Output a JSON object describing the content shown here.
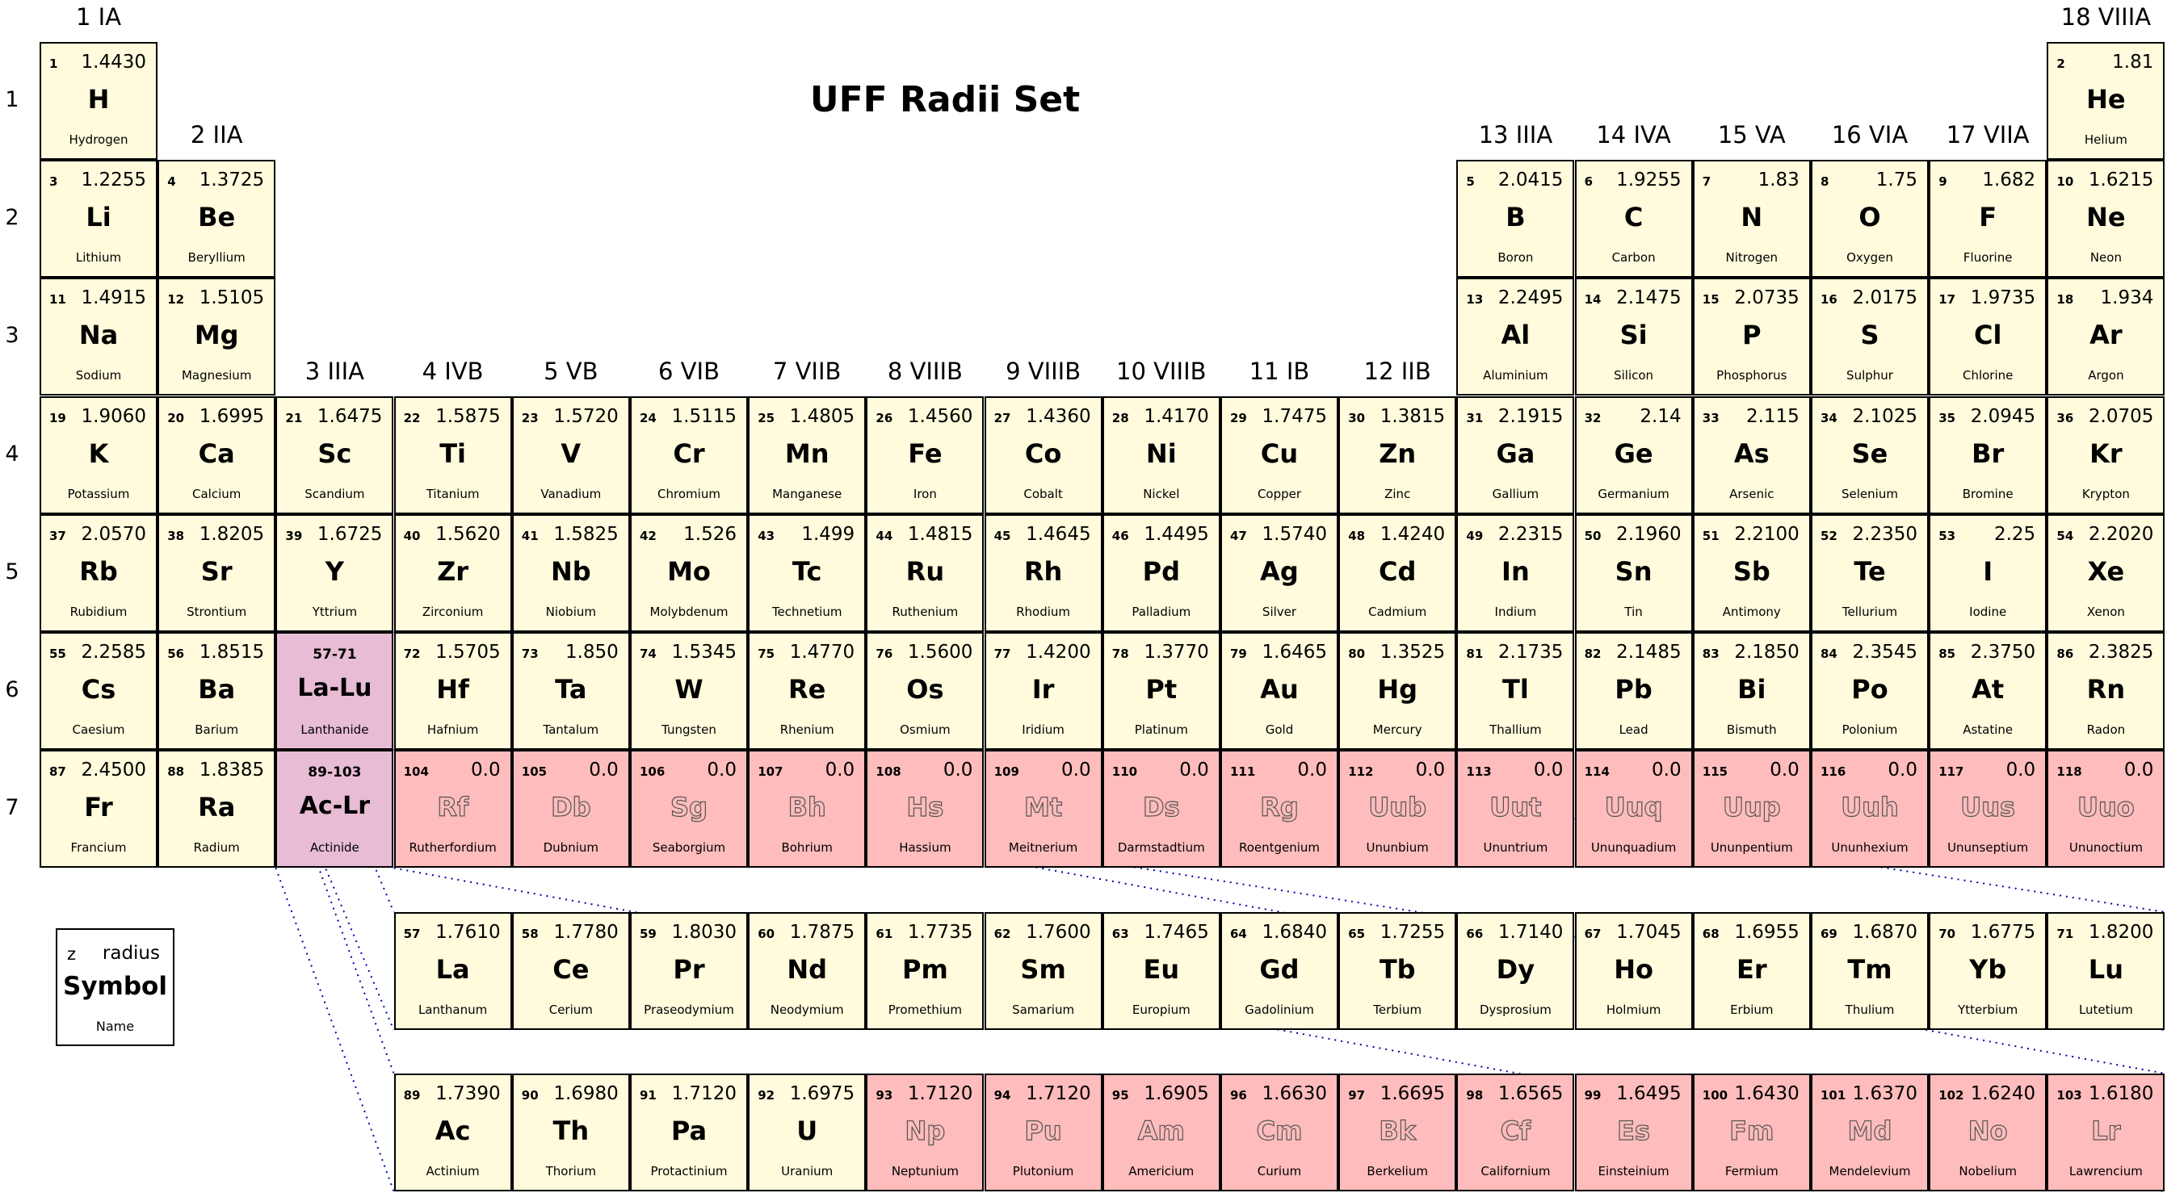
{
  "title": "UFF Radii Set",
  "legend": {
    "z": "z",
    "radius": "radius",
    "symbol": "Symbol",
    "name": "Name"
  },
  "colors": {
    "cell": "#fffbdc",
    "synthetic": "#ffbcbc",
    "series_placeholder": "#e8bcd4",
    "connector": "#0000aa"
  },
  "period_labels": [
    "1",
    "2",
    "3",
    "4",
    "5",
    "6",
    "7"
  ],
  "group_labels": [
    {
      "group": 1,
      "label": "1 IA"
    },
    {
      "group": 2,
      "label": "2 IIA"
    },
    {
      "group": 3,
      "label": "3 IIIA"
    },
    {
      "group": 4,
      "label": "4 IVB"
    },
    {
      "group": 5,
      "label": "5 VB"
    },
    {
      "group": 6,
      "label": "6 VIB"
    },
    {
      "group": 7,
      "label": "7 VIIB"
    },
    {
      "group": 8,
      "label": "8 VIIIB"
    },
    {
      "group": 9,
      "label": "9 VIIIB"
    },
    {
      "group": 10,
      "label": "10 VIIIB"
    },
    {
      "group": 11,
      "label": "11 IB"
    },
    {
      "group": 12,
      "label": "12 IIB"
    },
    {
      "group": 13,
      "label": "13 IIIA"
    },
    {
      "group": 14,
      "label": "14 IVA"
    },
    {
      "group": 15,
      "label": "15 VA"
    },
    {
      "group": 16,
      "label": "16 VIA"
    },
    {
      "group": 17,
      "label": "17 VIIA"
    },
    {
      "group": 18,
      "label": "18 VIIIA"
    }
  ],
  "series_placeholders": [
    {
      "range": "57-71",
      "symbol": "La-Lu",
      "name": "Lanthanide",
      "period": 6,
      "group": 3
    },
    {
      "range": "89-103",
      "symbol": "Ac-Lr",
      "name": "Actinide",
      "period": 7,
      "group": 3
    }
  ],
  "elements": [
    {
      "z": "1",
      "symbol": "H",
      "name": "Hydrogen",
      "radius": "1.4430",
      "period": 1,
      "group": 1
    },
    {
      "z": "2",
      "symbol": "He",
      "name": "Helium",
      "radius": "1.81",
      "period": 1,
      "group": 18
    },
    {
      "z": "3",
      "symbol": "Li",
      "name": "Lithium",
      "radius": "1.2255",
      "period": 2,
      "group": 1
    },
    {
      "z": "4",
      "symbol": "Be",
      "name": "Beryllium",
      "radius": "1.3725",
      "period": 2,
      "group": 2
    },
    {
      "z": "5",
      "symbol": "B",
      "name": "Boron",
      "radius": "2.0415",
      "period": 2,
      "group": 13
    },
    {
      "z": "6",
      "symbol": "C",
      "name": "Carbon",
      "radius": "1.9255",
      "period": 2,
      "group": 14
    },
    {
      "z": "7",
      "symbol": "N",
      "name": "Nitrogen",
      "radius": "1.83",
      "period": 2,
      "group": 15
    },
    {
      "z": "8",
      "symbol": "O",
      "name": "Oxygen",
      "radius": "1.75",
      "period": 2,
      "group": 16
    },
    {
      "z": "9",
      "symbol": "F",
      "name": "Fluorine",
      "radius": "1.682",
      "period": 2,
      "group": 17
    },
    {
      "z": "10",
      "symbol": "Ne",
      "name": "Neon",
      "radius": "1.6215",
      "period": 2,
      "group": 18
    },
    {
      "z": "11",
      "symbol": "Na",
      "name": "Sodium",
      "radius": "1.4915",
      "period": 3,
      "group": 1
    },
    {
      "z": "12",
      "symbol": "Mg",
      "name": "Magnesium",
      "radius": "1.5105",
      "period": 3,
      "group": 2
    },
    {
      "z": "13",
      "symbol": "Al",
      "name": "Aluminium",
      "radius": "2.2495",
      "period": 3,
      "group": 13
    },
    {
      "z": "14",
      "symbol": "Si",
      "name": "Silicon",
      "radius": "2.1475",
      "period": 3,
      "group": 14
    },
    {
      "z": "15",
      "symbol": "P",
      "name": "Phosphorus",
      "radius": "2.0735",
      "period": 3,
      "group": 15
    },
    {
      "z": "16",
      "symbol": "S",
      "name": "Sulphur",
      "radius": "2.0175",
      "period": 3,
      "group": 16
    },
    {
      "z": "17",
      "symbol": "Cl",
      "name": "Chlorine",
      "radius": "1.9735",
      "period": 3,
      "group": 17
    },
    {
      "z": "18",
      "symbol": "Ar",
      "name": "Argon",
      "radius": "1.934",
      "period": 3,
      "group": 18
    },
    {
      "z": "19",
      "symbol": "K",
      "name": "Potassium",
      "radius": "1.9060",
      "period": 4,
      "group": 1
    },
    {
      "z": "20",
      "symbol": "Ca",
      "name": "Calcium",
      "radius": "1.6995",
      "period": 4,
      "group": 2
    },
    {
      "z": "21",
      "symbol": "Sc",
      "name": "Scandium",
      "radius": "1.6475",
      "period": 4,
      "group": 3
    },
    {
      "z": "22",
      "symbol": "Ti",
      "name": "Titanium",
      "radius": "1.5875",
      "period": 4,
      "group": 4
    },
    {
      "z": "23",
      "symbol": "V",
      "name": "Vanadium",
      "radius": "1.5720",
      "period": 4,
      "group": 5
    },
    {
      "z": "24",
      "symbol": "Cr",
      "name": "Chromium",
      "radius": "1.5115",
      "period": 4,
      "group": 6
    },
    {
      "z": "25",
      "symbol": "Mn",
      "name": "Manganese",
      "radius": "1.4805",
      "period": 4,
      "group": 7
    },
    {
      "z": "26",
      "symbol": "Fe",
      "name": "Iron",
      "radius": "1.4560",
      "period": 4,
      "group": 8
    },
    {
      "z": "27",
      "symbol": "Co",
      "name": "Cobalt",
      "radius": "1.4360",
      "period": 4,
      "group": 9
    },
    {
      "z": "28",
      "symbol": "Ni",
      "name": "Nickel",
      "radius": "1.4170",
      "period": 4,
      "group": 10
    },
    {
      "z": "29",
      "symbol": "Cu",
      "name": "Copper",
      "radius": "1.7475",
      "period": 4,
      "group": 11
    },
    {
      "z": "30",
      "symbol": "Zn",
      "name": "Zinc",
      "radius": "1.3815",
      "period": 4,
      "group": 12
    },
    {
      "z": "31",
      "symbol": "Ga",
      "name": "Gallium",
      "radius": "2.1915",
      "period": 4,
      "group": 13
    },
    {
      "z": "32",
      "symbol": "Ge",
      "name": "Germanium",
      "radius": "2.14",
      "period": 4,
      "group": 14
    },
    {
      "z": "33",
      "symbol": "As",
      "name": "Arsenic",
      "radius": "2.115",
      "period": 4,
      "group": 15
    },
    {
      "z": "34",
      "symbol": "Se",
      "name": "Selenium",
      "radius": "2.1025",
      "period": 4,
      "group": 16
    },
    {
      "z": "35",
      "symbol": "Br",
      "name": "Bromine",
      "radius": "2.0945",
      "period": 4,
      "group": 17
    },
    {
      "z": "36",
      "symbol": "Kr",
      "name": "Krypton",
      "radius": "2.0705",
      "period": 4,
      "group": 18
    },
    {
      "z": "37",
      "symbol": "Rb",
      "name": "Rubidium",
      "radius": "2.0570",
      "period": 5,
      "group": 1
    },
    {
      "z": "38",
      "symbol": "Sr",
      "name": "Strontium",
      "radius": "1.8205",
      "period": 5,
      "group": 2
    },
    {
      "z": "39",
      "symbol": "Y",
      "name": "Yttrium",
      "radius": "1.6725",
      "period": 5,
      "group": 3
    },
    {
      "z": "40",
      "symbol": "Zr",
      "name": "Zirconium",
      "radius": "1.5620",
      "period": 5,
      "group": 4
    },
    {
      "z": "41",
      "symbol": "Nb",
      "name": "Niobium",
      "radius": "1.5825",
      "period": 5,
      "group": 5
    },
    {
      "z": "42",
      "symbol": "Mo",
      "name": "Molybdenum",
      "radius": "1.526",
      "period": 5,
      "group": 6
    },
    {
      "z": "43",
      "symbol": "Tc",
      "name": "Technetium",
      "radius": "1.499",
      "period": 5,
      "group": 7
    },
    {
      "z": "44",
      "symbol": "Ru",
      "name": "Ruthenium",
      "radius": "1.4815",
      "period": 5,
      "group": 8
    },
    {
      "z": "45",
      "symbol": "Rh",
      "name": "Rhodium",
      "radius": "1.4645",
      "period": 5,
      "group": 9
    },
    {
      "z": "46",
      "symbol": "Pd",
      "name": "Palladium",
      "radius": "1.4495",
      "period": 5,
      "group": 10
    },
    {
      "z": "47",
      "symbol": "Ag",
      "name": "Silver",
      "radius": "1.5740",
      "period": 5,
      "group": 11
    },
    {
      "z": "48",
      "symbol": "Cd",
      "name": "Cadmium",
      "radius": "1.4240",
      "period": 5,
      "group": 12
    },
    {
      "z": "49",
      "symbol": "In",
      "name": "Indium",
      "radius": "2.2315",
      "period": 5,
      "group": 13
    },
    {
      "z": "50",
      "symbol": "Sn",
      "name": "Tin",
      "radius": "2.1960",
      "period": 5,
      "group": 14
    },
    {
      "z": "51",
      "symbol": "Sb",
      "name": "Antimony",
      "radius": "2.2100",
      "period": 5,
      "group": 15
    },
    {
      "z": "52",
      "symbol": "Te",
      "name": "Tellurium",
      "radius": "2.2350",
      "period": 5,
      "group": 16
    },
    {
      "z": "53",
      "symbol": "I",
      "name": "Iodine",
      "radius": "2.25",
      "period": 5,
      "group": 17
    },
    {
      "z": "54",
      "symbol": "Xe",
      "name": "Xenon",
      "radius": "2.2020",
      "period": 5,
      "group": 18
    },
    {
      "z": "55",
      "symbol": "Cs",
      "name": "Caesium",
      "radius": "2.2585",
      "period": 6,
      "group": 1
    },
    {
      "z": "56",
      "symbol": "Ba",
      "name": "Barium",
      "radius": "1.8515",
      "period": 6,
      "group": 2
    },
    {
      "z": "72",
      "symbol": "Hf",
      "name": "Hafnium",
      "radius": "1.5705",
      "period": 6,
      "group": 4
    },
    {
      "z": "73",
      "symbol": "Ta",
      "name": "Tantalum",
      "radius": "1.850",
      "period": 6,
      "group": 5
    },
    {
      "z": "74",
      "symbol": "W",
      "name": "Tungsten",
      "radius": "1.5345",
      "period": 6,
      "group": 6
    },
    {
      "z": "75",
      "symbol": "Re",
      "name": "Rhenium",
      "radius": "1.4770",
      "period": 6,
      "group": 7
    },
    {
      "z": "76",
      "symbol": "Os",
      "name": "Osmium",
      "radius": "1.5600",
      "period": 6,
      "group": 8
    },
    {
      "z": "77",
      "symbol": "Ir",
      "name": "Iridium",
      "radius": "1.4200",
      "period": 6,
      "group": 9
    },
    {
      "z": "78",
      "symbol": "Pt",
      "name": "Platinum",
      "radius": "1.3770",
      "period": 6,
      "group": 10
    },
    {
      "z": "79",
      "symbol": "Au",
      "name": "Gold",
      "radius": "1.6465",
      "period": 6,
      "group": 11
    },
    {
      "z": "80",
      "symbol": "Hg",
      "name": "Mercury",
      "radius": "1.3525",
      "period": 6,
      "group": 12
    },
    {
      "z": "81",
      "symbol": "Tl",
      "name": "Thallium",
      "radius": "2.1735",
      "period": 6,
      "group": 13
    },
    {
      "z": "82",
      "symbol": "Pb",
      "name": "Lead",
      "radius": "2.1485",
      "period": 6,
      "group": 14
    },
    {
      "z": "83",
      "symbol": "Bi",
      "name": "Bismuth",
      "radius": "2.1850",
      "period": 6,
      "group": 15
    },
    {
      "z": "84",
      "symbol": "Po",
      "name": "Polonium",
      "radius": "2.3545",
      "period": 6,
      "group": 16
    },
    {
      "z": "85",
      "symbol": "At",
      "name": "Astatine",
      "radius": "2.3750",
      "period": 6,
      "group": 17
    },
    {
      "z": "86",
      "symbol": "Rn",
      "name": "Radon",
      "radius": "2.3825",
      "period": 6,
      "group": 18
    },
    {
      "z": "87",
      "symbol": "Fr",
      "name": "Francium",
      "radius": "2.4500",
      "period": 7,
      "group": 1
    },
    {
      "z": "88",
      "symbol": "Ra",
      "name": "Radium",
      "radius": "1.8385",
      "period": 7,
      "group": 2
    },
    {
      "z": "104",
      "symbol": "Rf",
      "name": "Rutherfordium",
      "radius": "0.0",
      "period": 7,
      "group": 4,
      "synthetic": true
    },
    {
      "z": "105",
      "symbol": "Db",
      "name": "Dubnium",
      "radius": "0.0",
      "period": 7,
      "group": 5,
      "synthetic": true
    },
    {
      "z": "106",
      "symbol": "Sg",
      "name": "Seaborgium",
      "radius": "0.0",
      "period": 7,
      "group": 6,
      "synthetic": true
    },
    {
      "z": "107",
      "symbol": "Bh",
      "name": "Bohrium",
      "radius": "0.0",
      "period": 7,
      "group": 7,
      "synthetic": true
    },
    {
      "z": "108",
      "symbol": "Hs",
      "name": "Hassium",
      "radius": "0.0",
      "period": 7,
      "group": 8,
      "synthetic": true
    },
    {
      "z": "109",
      "symbol": "Mt",
      "name": "Meitnerium",
      "radius": "0.0",
      "period": 7,
      "group": 9,
      "synthetic": true
    },
    {
      "z": "110",
      "symbol": "Ds",
      "name": "Darmstadtium",
      "radius": "0.0",
      "period": 7,
      "group": 10,
      "synthetic": true
    },
    {
      "z": "111",
      "symbol": "Rg",
      "name": "Roentgenium",
      "radius": "0.0",
      "period": 7,
      "group": 11,
      "synthetic": true
    },
    {
      "z": "112",
      "symbol": "Uub",
      "name": "Ununbium",
      "radius": "0.0",
      "period": 7,
      "group": 12,
      "synthetic": true
    },
    {
      "z": "113",
      "symbol": "Uut",
      "name": "Ununtrium",
      "radius": "0.0",
      "period": 7,
      "group": 13,
      "synthetic": true
    },
    {
      "z": "114",
      "symbol": "Uuq",
      "name": "Ununquadium",
      "radius": "0.0",
      "period": 7,
      "group": 14,
      "synthetic": true
    },
    {
      "z": "115",
      "symbol": "Uup",
      "name": "Ununpentium",
      "radius": "0.0",
      "period": 7,
      "group": 15,
      "synthetic": true
    },
    {
      "z": "116",
      "symbol": "Uuh",
      "name": "Ununhexium",
      "radius": "0.0",
      "period": 7,
      "group": 16,
      "synthetic": true
    },
    {
      "z": "117",
      "symbol": "Uus",
      "name": "Ununseptium",
      "radius": "0.0",
      "period": 7,
      "group": 17,
      "synthetic": true
    },
    {
      "z": "118",
      "symbol": "Uuo",
      "name": "Ununoctium",
      "radius": "0.0",
      "period": 7,
      "group": 18,
      "synthetic": true
    }
  ],
  "lanthanides": [
    {
      "z": "57",
      "symbol": "La",
      "name": "Lanthanum",
      "radius": "1.7610"
    },
    {
      "z": "58",
      "symbol": "Ce",
      "name": "Cerium",
      "radius": "1.7780"
    },
    {
      "z": "59",
      "symbol": "Pr",
      "name": "Praseodymium",
      "radius": "1.8030"
    },
    {
      "z": "60",
      "symbol": "Nd",
      "name": "Neodymium",
      "radius": "1.7875"
    },
    {
      "z": "61",
      "symbol": "Pm",
      "name": "Promethium",
      "radius": "1.7735"
    },
    {
      "z": "62",
      "symbol": "Sm",
      "name": "Samarium",
      "radius": "1.7600"
    },
    {
      "z": "63",
      "symbol": "Eu",
      "name": "Europium",
      "radius": "1.7465"
    },
    {
      "z": "64",
      "symbol": "Gd",
      "name": "Gadolinium",
      "radius": "1.6840"
    },
    {
      "z": "65",
      "symbol": "Tb",
      "name": "Terbium",
      "radius": "1.7255"
    },
    {
      "z": "66",
      "symbol": "Dy",
      "name": "Dysprosium",
      "radius": "1.7140"
    },
    {
      "z": "67",
      "symbol": "Ho",
      "name": "Holmium",
      "radius": "1.7045"
    },
    {
      "z": "68",
      "symbol": "Er",
      "name": "Erbium",
      "radius": "1.6955"
    },
    {
      "z": "69",
      "symbol": "Tm",
      "name": "Thulium",
      "radius": "1.6870"
    },
    {
      "z": "70",
      "symbol": "Yb",
      "name": "Ytterbium",
      "radius": "1.6775"
    },
    {
      "z": "71",
      "symbol": "Lu",
      "name": "Lutetium",
      "radius": "1.8200"
    }
  ],
  "actinides": [
    {
      "z": "89",
      "symbol": "Ac",
      "name": "Actinium",
      "radius": "1.7390"
    },
    {
      "z": "90",
      "symbol": "Th",
      "name": "Thorium",
      "radius": "1.6980"
    },
    {
      "z": "91",
      "symbol": "Pa",
      "name": "Protactinium",
      "radius": "1.7120"
    },
    {
      "z": "92",
      "symbol": "U",
      "name": "Uranium",
      "radius": "1.6975"
    },
    {
      "z": "93",
      "symbol": "Np",
      "name": "Neptunium",
      "radius": "1.7120",
      "synthetic": true
    },
    {
      "z": "94",
      "symbol": "Pu",
      "name": "Plutonium",
      "radius": "1.7120",
      "synthetic": true
    },
    {
      "z": "95",
      "symbol": "Am",
      "name": "Americium",
      "radius": "1.6905",
      "synthetic": true
    },
    {
      "z": "96",
      "symbol": "Cm",
      "name": "Curium",
      "radius": "1.6630",
      "synthetic": true
    },
    {
      "z": "97",
      "symbol": "Bk",
      "name": "Berkelium",
      "radius": "1.6695",
      "synthetic": true
    },
    {
      "z": "98",
      "symbol": "Cf",
      "name": "Californium",
      "radius": "1.6565",
      "synthetic": true
    },
    {
      "z": "99",
      "symbol": "Es",
      "name": "Einsteinium",
      "radius": "1.6495",
      "synthetic": true
    },
    {
      "z": "100",
      "symbol": "Fm",
      "name": "Fermium",
      "radius": "1.6430",
      "synthetic": true
    },
    {
      "z": "101",
      "symbol": "Md",
      "name": "Mendelevium",
      "radius": "1.6370",
      "synthetic": true
    },
    {
      "z": "102",
      "symbol": "No",
      "name": "Nobelium",
      "radius": "1.6240",
      "synthetic": true
    },
    {
      "z": "103",
      "symbol": "Lr",
      "name": "Lawrencium",
      "radius": "1.6180",
      "synthetic": true
    }
  ]
}
